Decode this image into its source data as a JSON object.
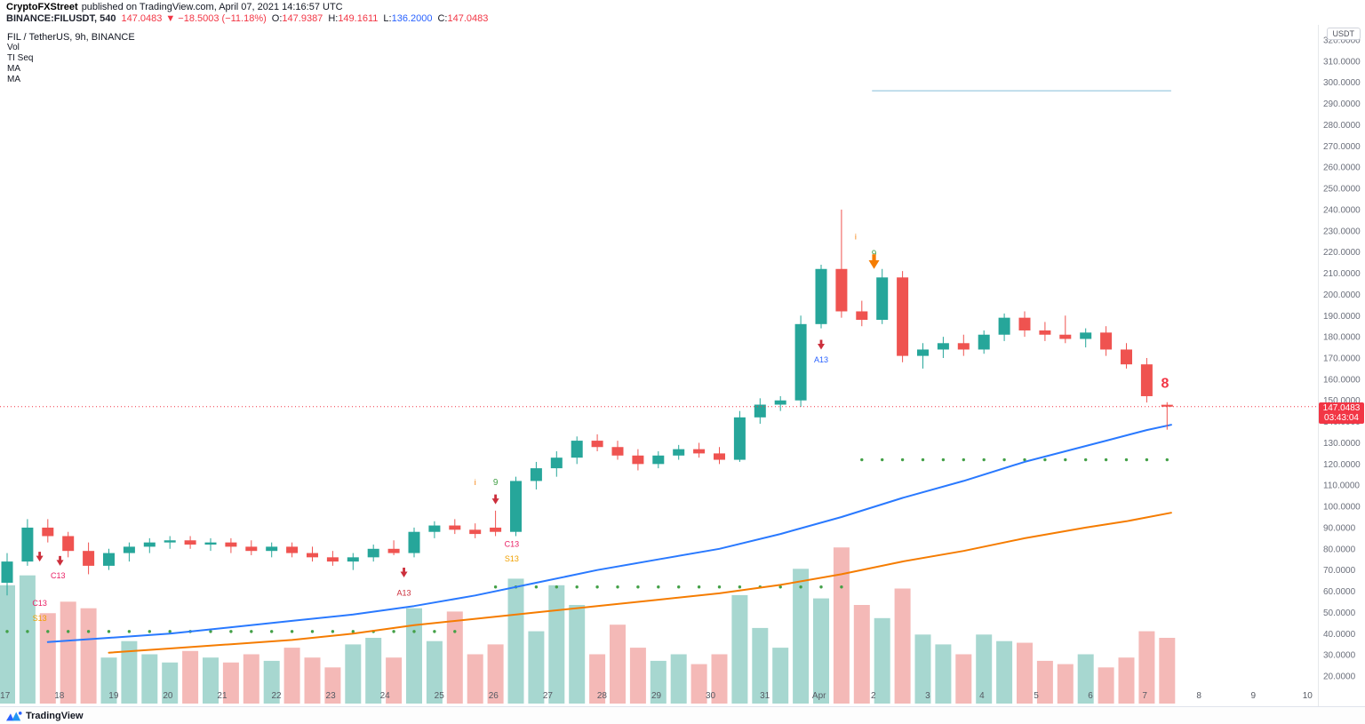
{
  "header": {
    "brand": "CryptoFXStreet",
    "published": "published on TradingView.com, April 07, 2021 14:16:57 UTC",
    "symbol": "BINANCE:FILUSDT, 540",
    "last_price": "147.0483",
    "change": "▼ −18.5003 (−11.18%)",
    "o_label": "O:",
    "o": "147.9387",
    "h_label": "H:",
    "h": "149.1611",
    "l_label": "L:",
    "l": "136.2000",
    "c_label": "C:",
    "c": "147.0483"
  },
  "legend": {
    "title": "FIL / TetherUS, 9h, BINANCE",
    "items": [
      "Vol",
      "TI Seq",
      "MA",
      "MA"
    ]
  },
  "price_scale": {
    "unit": "USDT",
    "badge_price": "147.0483",
    "badge_countdown": "03:43:04"
  },
  "footer": {
    "logo_text": "TradingView"
  },
  "colors": {
    "up": "#26a69a",
    "down": "#ef5350",
    "vol_up": "#a7d7d0",
    "vol_down": "#f4b9b7",
    "ma_fast": "#2979ff",
    "ma_slow": "#f57c00",
    "dots": "#43a047",
    "resistance": "#aed3e6",
    "price_line": "#f23645",
    "axis_text": "#6b6f7b",
    "time_text": "#565a63"
  },
  "chart_data": {
    "type": "candlestick",
    "title": "FIL / TetherUS, 9h, BINANCE",
    "interval": "9h (540 min)",
    "y_axis": {
      "min": 20,
      "max": 320,
      "step": 10,
      "decimals": 4,
      "unit": "USDT"
    },
    "x_axis": {
      "labels": [
        "17",
        "18",
        "19",
        "20",
        "21",
        "22",
        "23",
        "24",
        "25",
        "26",
        "27",
        "28",
        "29",
        "30",
        "31",
        "Apr",
        "2",
        "3",
        "4",
        "5",
        "6",
        "7",
        "8",
        "9",
        "10"
      ],
      "candles_per_day": 2.66667
    },
    "candles": [
      [
        64,
        78,
        58,
        74
      ],
      [
        74,
        94,
        72,
        90
      ],
      [
        90,
        94,
        83,
        86
      ],
      [
        86,
        88,
        76,
        79
      ],
      [
        79,
        83,
        68,
        72
      ],
      [
        72,
        80,
        70,
        78
      ],
      [
        78,
        83,
        74,
        81
      ],
      [
        81,
        85,
        78,
        83
      ],
      [
        83,
        86,
        80,
        84
      ],
      [
        84,
        86,
        80,
        82
      ],
      [
        82,
        85,
        79,
        83
      ],
      [
        83,
        85,
        78,
        81
      ],
      [
        81,
        84,
        77,
        79
      ],
      [
        79,
        83,
        76,
        81
      ],
      [
        81,
        83,
        76,
        78
      ],
      [
        78,
        81,
        74,
        76
      ],
      [
        76,
        79,
        72,
        74
      ],
      [
        74,
        78,
        70,
        76
      ],
      [
        76,
        82,
        74,
        80
      ],
      [
        80,
        84,
        77,
        78
      ],
      [
        78,
        90,
        76,
        88
      ],
      [
        88,
        93,
        85,
        91
      ],
      [
        91,
        94,
        87,
        89
      ],
      [
        89,
        92,
        85,
        87
      ],
      [
        90,
        98,
        86,
        88
      ],
      [
        88,
        114,
        86,
        112
      ],
      [
        112,
        121,
        108,
        118
      ],
      [
        118,
        126,
        114,
        123
      ],
      [
        123,
        133,
        120,
        131
      ],
      [
        131,
        134,
        126,
        128
      ],
      [
        128,
        131,
        122,
        124
      ],
      [
        124,
        127,
        117,
        120
      ],
      [
        120,
        126,
        118,
        124
      ],
      [
        124,
        129,
        122,
        127
      ],
      [
        127,
        130,
        123,
        125
      ],
      [
        125,
        128,
        120,
        122
      ],
      [
        122,
        145,
        121,
        142
      ],
      [
        142,
        151,
        139,
        148
      ],
      [
        148,
        152,
        145,
        150
      ],
      [
        150,
        190,
        147,
        186
      ],
      [
        186,
        214,
        184,
        212
      ],
      [
        212,
        240,
        189,
        192
      ],
      [
        192,
        197,
        185,
        188
      ],
      [
        188,
        212,
        186,
        208
      ],
      [
        208,
        211,
        168,
        171
      ],
      [
        171,
        177,
        165,
        174
      ],
      [
        174,
        180,
        170,
        177
      ],
      [
        177,
        181,
        171,
        174
      ],
      [
        174,
        183,
        172,
        181
      ],
      [
        181,
        191,
        178,
        189
      ],
      [
        189,
        192,
        180,
        183
      ],
      [
        183,
        187,
        178,
        181
      ],
      [
        181,
        190,
        177,
        179
      ],
      [
        179,
        184,
        175,
        182
      ],
      [
        182,
        185,
        171,
        174
      ],
      [
        174,
        177,
        165,
        167
      ],
      [
        167,
        170,
        149,
        152
      ],
      [
        147.9387,
        149.1611,
        136.2,
        147.0483
      ]
    ],
    "volume": [
      72,
      78,
      55,
      62,
      58,
      28,
      38,
      30,
      25,
      32,
      28,
      25,
      30,
      26,
      34,
      28,
      22,
      36,
      40,
      28,
      58,
      38,
      56,
      30,
      36,
      76,
      44,
      72,
      60,
      30,
      48,
      34,
      26,
      30,
      24,
      30,
      66,
      46,
      34,
      82,
      64,
      95,
      60,
      52,
      70,
      42,
      36,
      30,
      42,
      38,
      37,
      26,
      24,
      30,
      22,
      28,
      44,
      40
    ],
    "ma_fast": [
      [
        2,
        36
      ],
      [
        5,
        38
      ],
      [
        8,
        40
      ],
      [
        11,
        43
      ],
      [
        14,
        46
      ],
      [
        17,
        49
      ],
      [
        20,
        53
      ],
      [
        23,
        58
      ],
      [
        26,
        64
      ],
      [
        29,
        70
      ],
      [
        32,
        75
      ],
      [
        35,
        80
      ],
      [
        38,
        87
      ],
      [
        41,
        95
      ],
      [
        44,
        104
      ],
      [
        47,
        112
      ],
      [
        50,
        121
      ],
      [
        52,
        126
      ],
      [
        54,
        131
      ],
      [
        56,
        136
      ],
      [
        57.2,
        138.5
      ]
    ],
    "ma_slow": [
      [
        5,
        31
      ],
      [
        8,
        33
      ],
      [
        11,
        35
      ],
      [
        14,
        37
      ],
      [
        17,
        40
      ],
      [
        20,
        44
      ],
      [
        23,
        47
      ],
      [
        26,
        50
      ],
      [
        29,
        53
      ],
      [
        32,
        56
      ],
      [
        35,
        59
      ],
      [
        38,
        63
      ],
      [
        41,
        68
      ],
      [
        44,
        74
      ],
      [
        47,
        79
      ],
      [
        50,
        85
      ],
      [
        53,
        90
      ],
      [
        55,
        93
      ],
      [
        57.2,
        97
      ]
    ],
    "dot_rows": [
      {
        "price": 41,
        "from": 0,
        "to": 22
      },
      {
        "price": 62,
        "from": 24,
        "to": 41
      },
      {
        "price": 122,
        "from": 42,
        "to": 57
      }
    ],
    "resistance_line": {
      "price": 296,
      "from": 42.5,
      "to": 57.2
    },
    "last_price_line": {
      "price": 147.0483
    },
    "annotations": [
      {
        "kind": "arrow",
        "i": 1.6,
        "price": 74,
        "color": "#cc2f3c",
        "scale": 1
      },
      {
        "kind": "arrow",
        "i": 2.6,
        "price": 72,
        "color": "#cc2f3c",
        "scale": 1
      },
      {
        "kind": "text",
        "label": "C13",
        "i": 1.6,
        "price": 53,
        "color": "#e91e63",
        "size": 9
      },
      {
        "kind": "text",
        "label": "S13",
        "i": 1.6,
        "price": 46,
        "color": "#f0a000",
        "size": 9
      },
      {
        "kind": "text",
        "label": "C13",
        "i": 2.5,
        "price": 66,
        "color": "#e91e63",
        "size": 9
      },
      {
        "kind": "arrow",
        "i": 19.5,
        "price": 66.5,
        "color": "#cc2f3c",
        "scale": 1
      },
      {
        "kind": "text",
        "label": "A13",
        "i": 19.5,
        "price": 58,
        "color": "#cc2f3c",
        "size": 9
      },
      {
        "kind": "text",
        "label": "i",
        "i": 23,
        "price": 110,
        "color": "#f57c00",
        "size": 9
      },
      {
        "kind": "text",
        "label": "9",
        "i": 24,
        "price": 110,
        "color": "#43a047",
        "size": 10
      },
      {
        "kind": "arrow",
        "i": 24,
        "price": 101,
        "color": "#cc2f3c",
        "scale": 1
      },
      {
        "kind": "text",
        "label": "C13",
        "i": 24.8,
        "price": 81,
        "color": "#e91e63",
        "size": 9
      },
      {
        "kind": "text",
        "label": "S13",
        "i": 24.8,
        "price": 74,
        "color": "#f0a000",
        "size": 9
      },
      {
        "kind": "arrow",
        "i": 40,
        "price": 174,
        "color": "#cc2f3c",
        "scale": 1
      },
      {
        "kind": "text",
        "label": "A13",
        "i": 40,
        "price": 168,
        "color": "#2962ff",
        "size": 9
      },
      {
        "kind": "text",
        "label": "i",
        "i": 41.7,
        "price": 226,
        "color": "#f57c00",
        "size": 9
      },
      {
        "kind": "text",
        "label": "9",
        "i": 42.6,
        "price": 218,
        "color": "#43a047",
        "size": 10
      },
      {
        "kind": "arrow",
        "i": 42.6,
        "price": 212,
        "color": "#f57c00",
        "scale": 1.5
      },
      {
        "kind": "text",
        "label": "8",
        "i": 56.9,
        "price": 156,
        "color": "#f23645",
        "size": 16,
        "bold": true
      }
    ]
  }
}
